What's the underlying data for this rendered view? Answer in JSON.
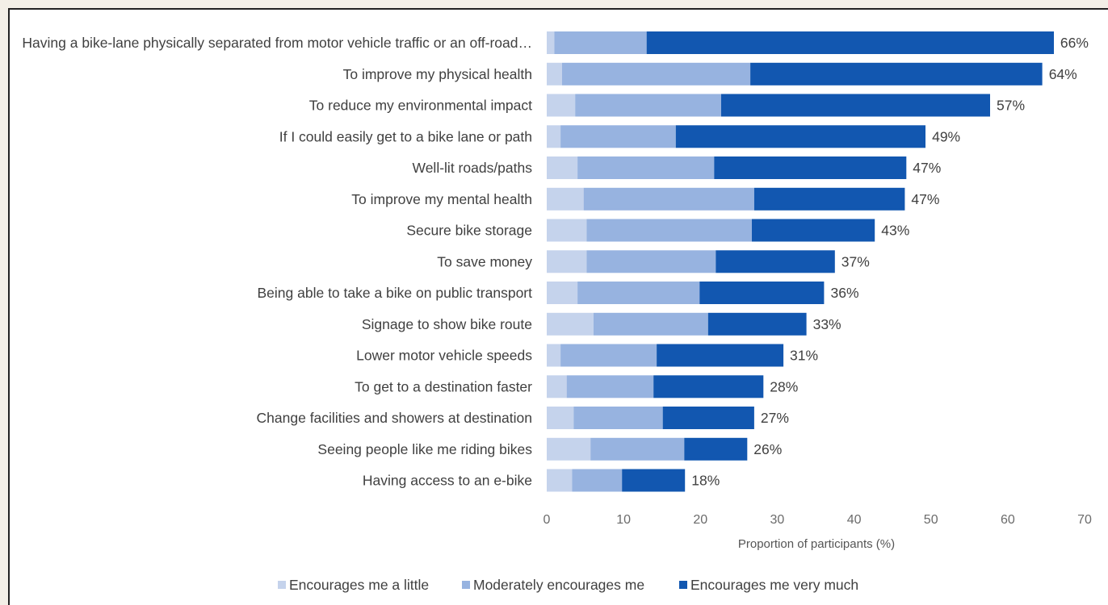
{
  "chart_data": {
    "type": "bar",
    "stacked": true,
    "orientation": "horizontal",
    "categories": [
      "Having a bike-lane physically separated from motor vehicle traffic or an off-road…",
      "To improve my physical health",
      "To reduce my environmental impact",
      "If I could easily get to a bike lane or path",
      "Well-lit roads/paths",
      "To improve my mental health",
      "Secure bike storage",
      "To save money",
      "Being able to take a bike on public transport",
      "Signage to show bike route",
      "Lower motor vehicle speeds",
      "To get to a destination faster",
      "Change facilities and showers at destination",
      "Seeing people like me riding bikes",
      "Having access to an e-bike"
    ],
    "series": [
      {
        "name": "Encourages me a little",
        "color": "#c5d3ec",
        "values": [
          1.0,
          2.0,
          3.7,
          1.8,
          4.0,
          4.8,
          5.2,
          5.2,
          4.0,
          6.1,
          1.8,
          2.6,
          3.5,
          5.7,
          3.3
        ]
      },
      {
        "name": "Moderately encourages me",
        "color": "#97b3e0",
        "values": [
          12.0,
          24.5,
          19.0,
          15.0,
          17.8,
          22.2,
          21.5,
          16.8,
          15.9,
          14.9,
          12.5,
          11.3,
          11.6,
          12.2,
          6.5
        ]
      },
      {
        "name": "Encourages me very much",
        "color": "#1257b0",
        "values": [
          53.0,
          38.0,
          35.0,
          32.5,
          25.0,
          19.6,
          16.0,
          15.5,
          16.2,
          12.8,
          16.5,
          14.3,
          11.9,
          8.2,
          8.2
        ]
      }
    ],
    "data_labels": [
      "66%",
      "64%",
      "57%",
      "49%",
      "47%",
      "47%",
      "43%",
      "37%",
      "36%",
      "33%",
      "31%",
      "28%",
      "27%",
      "26%",
      "18%"
    ],
    "xlabel": "Proportion of participants (%)",
    "xlim": [
      0,
      70
    ],
    "xticks": [
      "0",
      "10",
      "20",
      "30",
      "40",
      "50",
      "60",
      "70"
    ],
    "grid": false,
    "legend_position": "bottom"
  }
}
